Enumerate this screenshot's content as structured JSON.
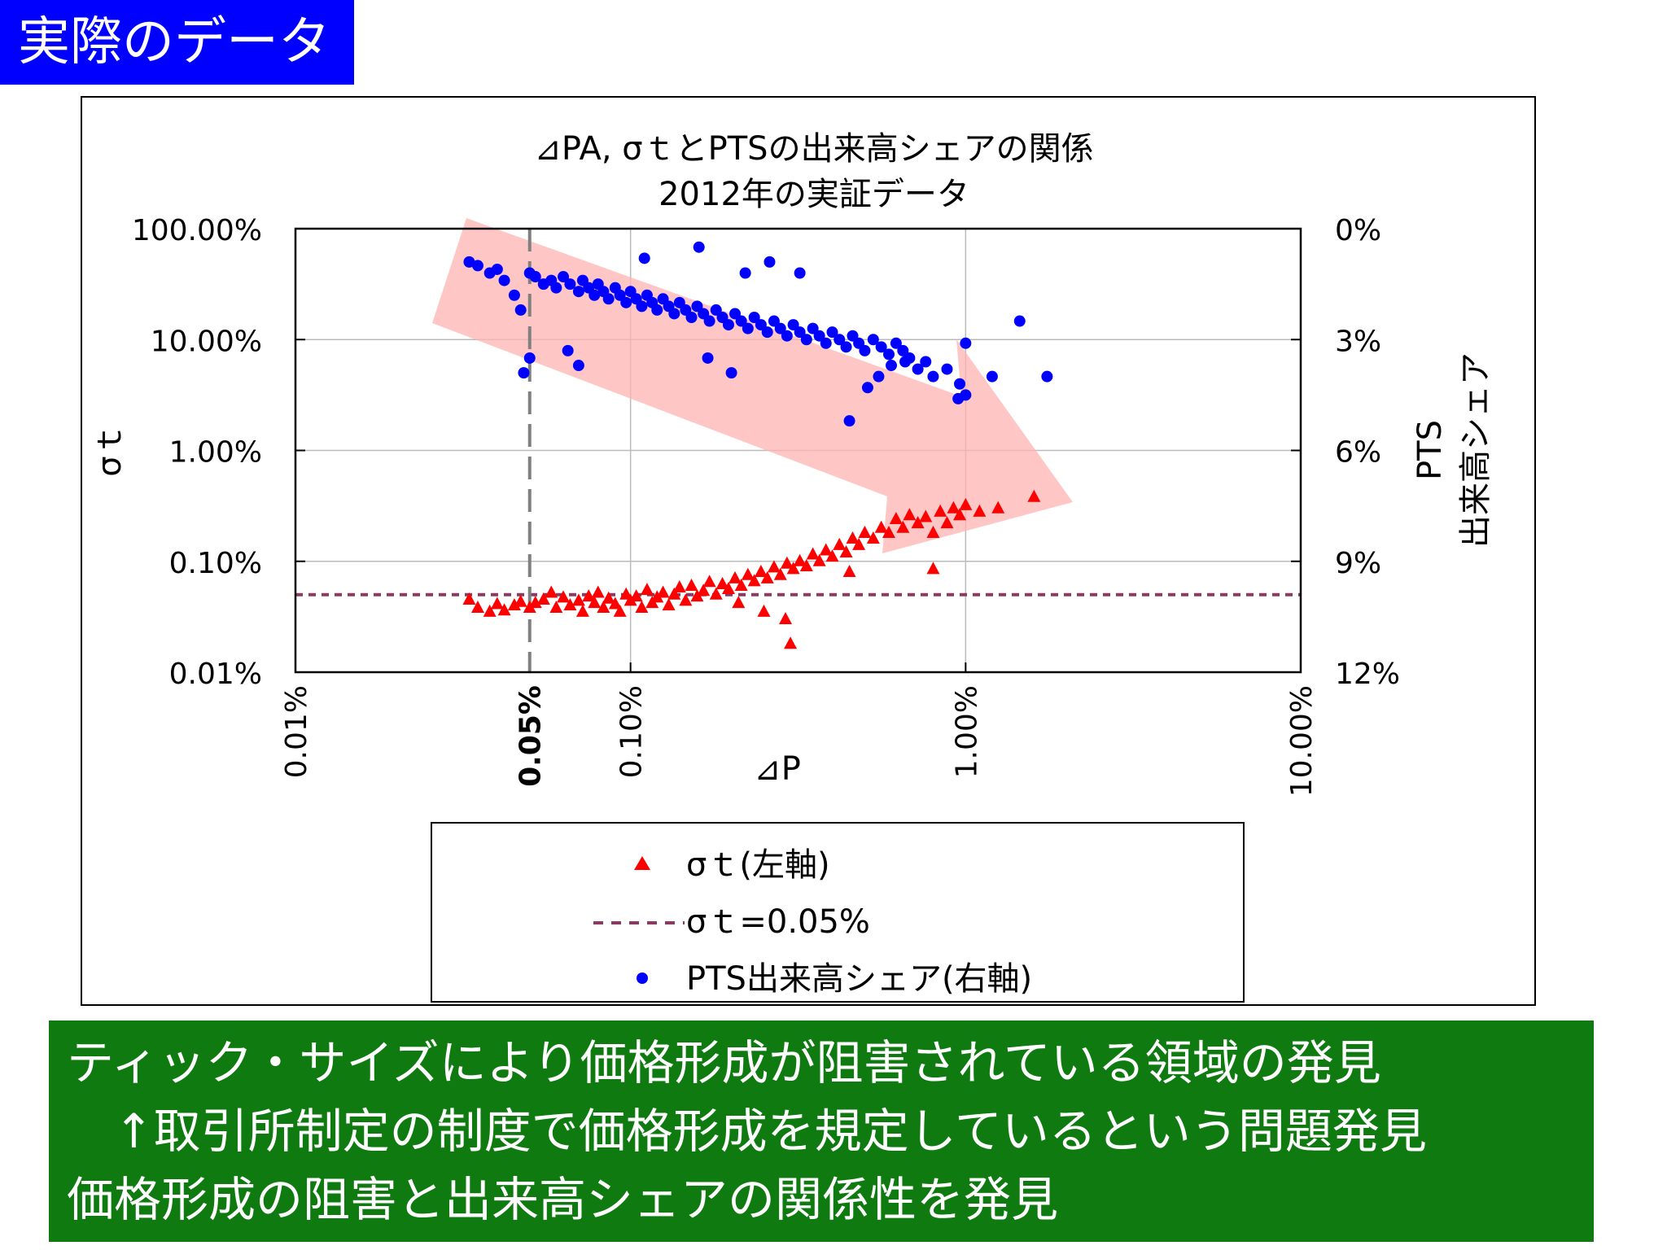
{
  "header": {
    "title": "実際のデータ"
  },
  "chart_data": {
    "type": "scatter",
    "title": "⊿PA, σｔとPTSの出来高シェアの関係",
    "subtitle": "2012年の実証データ",
    "xlabel": "⊿P",
    "ylabel_left": "σｔ",
    "ylabel_right": [
      "PTS",
      "出来高シェア"
    ],
    "x_scale": "log",
    "y_left_scale": "log",
    "xlim": [
      0.0001,
      0.1
    ],
    "y_left_lim": [
      0.0001,
      1.0
    ],
    "y_right_lim": [
      0.12,
      0.0
    ],
    "x_ticks": [
      "0.01%",
      "0.05%",
      "0.10%",
      "1.00%",
      "10.00%"
    ],
    "y_left_ticks": [
      "100.00%",
      "10.00%",
      "1.00%",
      "0.10%",
      "0.01%"
    ],
    "y_right_ticks": [
      "0%",
      "3%",
      "6%",
      "9%",
      "12%"
    ],
    "grid": true,
    "reference_vline_x": 0.0005,
    "reference_hline": {
      "name": "σｔ=0.05%",
      "value": 0.0005,
      "color": "#8b3a62"
    },
    "series": [
      {
        "name": "σｔ(左軸)",
        "axis": "left",
        "marker": "triangle",
        "color": "#ff0000",
        "points": [
          [
            0.00033,
            0.00045
          ],
          [
            0.00035,
            0.00038
          ],
          [
            0.00038,
            0.00035
          ],
          [
            0.0004,
            0.00041
          ],
          [
            0.00042,
            0.00036
          ],
          [
            0.00045,
            0.0004
          ],
          [
            0.00047,
            0.00043
          ],
          [
            0.0005,
            0.00038
          ],
          [
            0.00052,
            0.00042
          ],
          [
            0.00055,
            0.00045
          ],
          [
            0.00058,
            0.00052
          ],
          [
            0.0006,
            0.00038
          ],
          [
            0.00063,
            0.00047
          ],
          [
            0.00066,
            0.0004
          ],
          [
            0.0007,
            0.00044
          ],
          [
            0.00072,
            0.00035
          ],
          [
            0.00075,
            0.00048
          ],
          [
            0.00078,
            0.00042
          ],
          [
            0.0008,
            0.00052
          ],
          [
            0.00083,
            0.00038
          ],
          [
            0.00086,
            0.00046
          ],
          [
            0.0009,
            0.00041
          ],
          [
            0.00093,
            0.00035
          ],
          [
            0.00097,
            0.0005
          ],
          [
            0.001,
            0.00044
          ],
          [
            0.00104,
            0.00048
          ],
          [
            0.00108,
            0.00038
          ],
          [
            0.00112,
            0.00055
          ],
          [
            0.00116,
            0.00042
          ],
          [
            0.0012,
            0.00047
          ],
          [
            0.00125,
            0.00052
          ],
          [
            0.0013,
            0.0004
          ],
          [
            0.00135,
            0.0005
          ],
          [
            0.0014,
            0.00058
          ],
          [
            0.00146,
            0.00044
          ],
          [
            0.00152,
            0.0006
          ],
          [
            0.00158,
            0.00048
          ],
          [
            0.00165,
            0.00054
          ],
          [
            0.00172,
            0.00065
          ],
          [
            0.0018,
            0.0005
          ],
          [
            0.00188,
            0.00062
          ],
          [
            0.00196,
            0.00056
          ],
          [
            0.00205,
            0.0007
          ],
          [
            0.00214,
            0.0006
          ],
          [
            0.00224,
            0.00075
          ],
          [
            0.00234,
            0.00066
          ],
          [
            0.00245,
            0.0008
          ],
          [
            0.00256,
            0.0007
          ],
          [
            0.00268,
            0.00088
          ],
          [
            0.0028,
            0.00075
          ],
          [
            0.00293,
            0.00095
          ],
          [
            0.00306,
            0.00085
          ],
          [
            0.0032,
            0.001
          ],
          [
            0.00335,
            0.0009
          ],
          [
            0.0035,
            0.00115
          ],
          [
            0.00366,
            0.001
          ],
          [
            0.00383,
            0.00125
          ],
          [
            0.004,
            0.0011
          ],
          [
            0.0042,
            0.0014
          ],
          [
            0.0044,
            0.0012
          ],
          [
            0.0046,
            0.0016
          ],
          [
            0.0048,
            0.0014
          ],
          [
            0.005,
            0.0018
          ],
          [
            0.0053,
            0.0016
          ],
          [
            0.0056,
            0.002
          ],
          [
            0.0059,
            0.0018
          ],
          [
            0.0062,
            0.0024
          ],
          [
            0.0065,
            0.002
          ],
          [
            0.0068,
            0.0026
          ],
          [
            0.0072,
            0.0022
          ],
          [
            0.0076,
            0.0025
          ],
          [
            0.008,
            0.0018
          ],
          [
            0.0084,
            0.0028
          ],
          [
            0.0088,
            0.0022
          ],
          [
            0.0092,
            0.003
          ],
          [
            0.0096,
            0.0026
          ],
          [
            0.01,
            0.0032
          ],
          [
            0.011,
            0.0028
          ],
          [
            0.0125,
            0.003
          ],
          [
            0.016,
            0.0038
          ],
          [
            0.0029,
            0.0003
          ],
          [
            0.003,
            0.00018
          ],
          [
            0.0045,
            0.0008
          ],
          [
            0.008,
            0.00085
          ],
          [
            0.0025,
            0.00035
          ],
          [
            0.0021,
            0.00042
          ]
        ]
      },
      {
        "name": "PTS出来高シェア(右軸)",
        "axis": "right",
        "marker": "circle",
        "color": "#0000ff",
        "points": [
          [
            0.00033,
            0.009
          ],
          [
            0.00035,
            0.01
          ],
          [
            0.00038,
            0.012
          ],
          [
            0.0004,
            0.011
          ],
          [
            0.00042,
            0.014
          ],
          [
            0.00045,
            0.018
          ],
          [
            0.00047,
            0.022
          ],
          [
            0.0005,
            0.012
          ],
          [
            0.00052,
            0.013
          ],
          [
            0.00055,
            0.015
          ],
          [
            0.00058,
            0.014
          ],
          [
            0.0006,
            0.016
          ],
          [
            0.00063,
            0.013
          ],
          [
            0.00066,
            0.015
          ],
          [
            0.0007,
            0.017
          ],
          [
            0.00072,
            0.014
          ],
          [
            0.00075,
            0.016
          ],
          [
            0.00078,
            0.018
          ],
          [
            0.0008,
            0.015
          ],
          [
            0.00083,
            0.017
          ],
          [
            0.00086,
            0.019
          ],
          [
            0.0009,
            0.016
          ],
          [
            0.00093,
            0.018
          ],
          [
            0.00097,
            0.02
          ],
          [
            0.001,
            0.017
          ],
          [
            0.00104,
            0.019
          ],
          [
            0.00108,
            0.021
          ],
          [
            0.00112,
            0.018
          ],
          [
            0.00116,
            0.02
          ],
          [
            0.0012,
            0.022
          ],
          [
            0.00125,
            0.019
          ],
          [
            0.0013,
            0.021
          ],
          [
            0.00135,
            0.023
          ],
          [
            0.0014,
            0.02
          ],
          [
            0.00146,
            0.022
          ],
          [
            0.00152,
            0.024
          ],
          [
            0.00158,
            0.021
          ],
          [
            0.00165,
            0.023
          ],
          [
            0.00172,
            0.025
          ],
          [
            0.0018,
            0.022
          ],
          [
            0.00188,
            0.024
          ],
          [
            0.00196,
            0.026
          ],
          [
            0.00205,
            0.023
          ],
          [
            0.00214,
            0.025
          ],
          [
            0.00224,
            0.027
          ],
          [
            0.00234,
            0.024
          ],
          [
            0.00245,
            0.026
          ],
          [
            0.00256,
            0.028
          ],
          [
            0.00268,
            0.025
          ],
          [
            0.0028,
            0.027
          ],
          [
            0.00293,
            0.029
          ],
          [
            0.00306,
            0.026
          ],
          [
            0.0032,
            0.028
          ],
          [
            0.00335,
            0.03
          ],
          [
            0.0035,
            0.027
          ],
          [
            0.00366,
            0.029
          ],
          [
            0.00383,
            0.031
          ],
          [
            0.004,
            0.028
          ],
          [
            0.0042,
            0.03
          ],
          [
            0.0044,
            0.032
          ],
          [
            0.0046,
            0.029
          ],
          [
            0.0048,
            0.031
          ],
          [
            0.005,
            0.033
          ],
          [
            0.0053,
            0.03
          ],
          [
            0.0056,
            0.032
          ],
          [
            0.0059,
            0.034
          ],
          [
            0.0062,
            0.031
          ],
          [
            0.0065,
            0.033
          ],
          [
            0.0068,
            0.035
          ],
          [
            0.0072,
            0.038
          ],
          [
            0.0076,
            0.036
          ],
          [
            0.008,
            0.04
          ],
          [
            0.0088,
            0.038
          ],
          [
            0.0096,
            0.042
          ],
          [
            0.01,
            0.045
          ],
          [
            0.006,
            0.037
          ],
          [
            0.0055,
            0.04
          ],
          [
            0.0051,
            0.043
          ],
          [
            0.0045,
            0.052
          ],
          [
            0.002,
            0.039
          ],
          [
            0.0017,
            0.035
          ],
          [
            0.0011,
            0.008
          ],
          [
            0.0016,
            0.005
          ],
          [
            0.0022,
            0.012
          ],
          [
            0.0026,
            0.009
          ],
          [
            0.0032,
            0.012
          ],
          [
            0.0007,
            0.037
          ],
          [
            0.00065,
            0.033
          ],
          [
            0.0005,
            0.035
          ],
          [
            0.00048,
            0.039
          ],
          [
            0.01,
            0.031
          ],
          [
            0.0095,
            0.046
          ],
          [
            0.012,
            0.04
          ],
          [
            0.0145,
            0.025
          ],
          [
            0.0175,
            0.04
          ],
          [
            0.0066,
            0.036
          ]
        ]
      }
    ],
    "legend": [
      {
        "label": "σｔ(左軸)",
        "marker": "triangle",
        "color": "#ff0000"
      },
      {
        "label": "σｔ=0.05%",
        "marker": "dashed-line",
        "color": "#8b3a62"
      },
      {
        "label": "PTS出来高シェア(右軸)",
        "marker": "circle",
        "color": "#0000ff"
      }
    ],
    "legend_position": "bottom"
  },
  "note": {
    "lines": [
      "ティック・サイズにより価格形成が阻害されている領域の発見",
      "　↑取引所制定の制度で価格形成を規定しているという問題発見",
      "価格形成の阻害と出来高シェアの関係性を発見"
    ]
  }
}
